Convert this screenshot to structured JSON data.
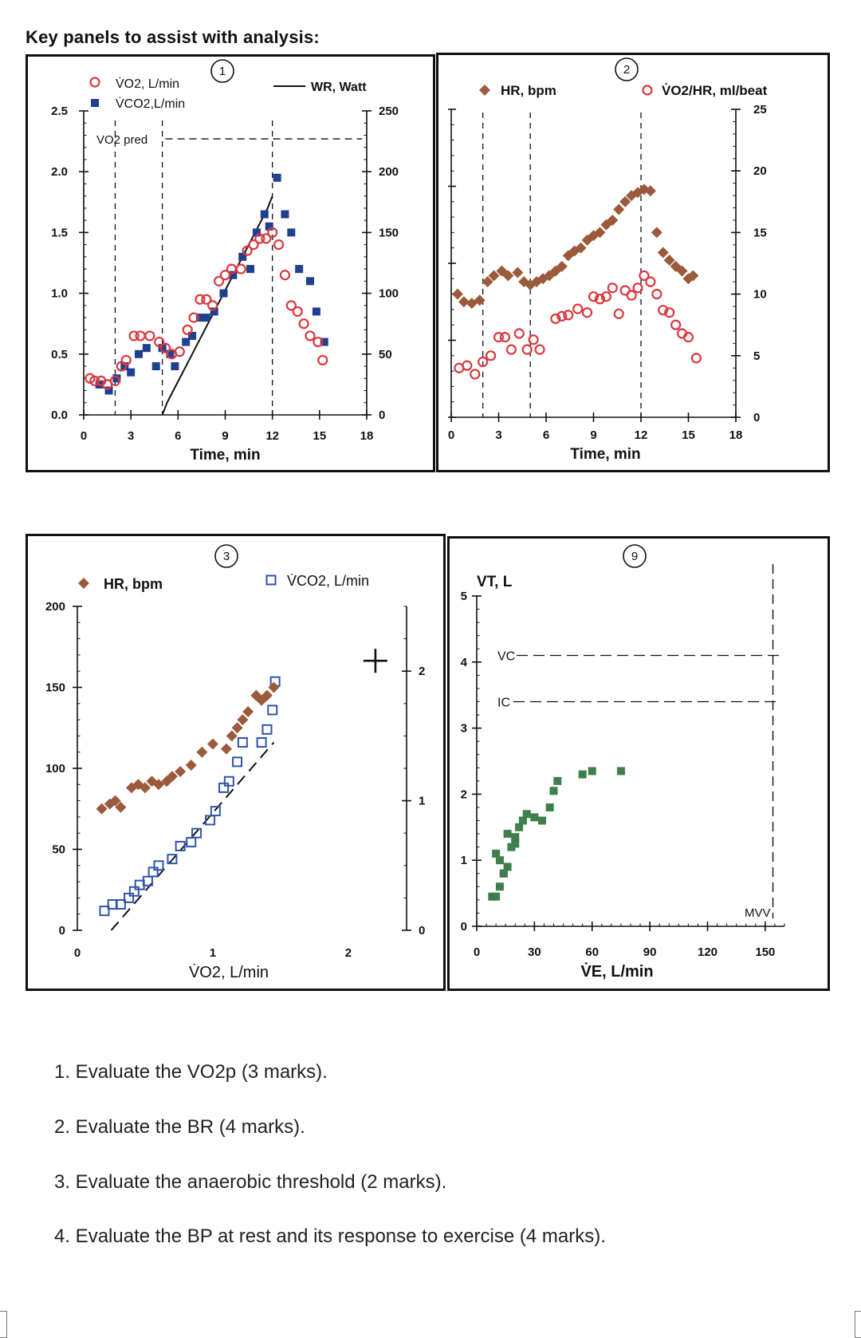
{
  "heading": "Key panels to assist with analysis:",
  "colors": {
    "vo2_red": "#d9393f",
    "vco2_blue": "#1f3f8f",
    "hr_brown": "#9c5a3c",
    "vco2_open_blue": "#2f55a8",
    "vt_green": "#3e7f4c",
    "ink": "#111111"
  },
  "chart_data": [
    {
      "panel_number": "1",
      "type": "scatter",
      "x_label": "Time, min",
      "x_ticks": [
        "0",
        "3",
        "6",
        "9",
        "12",
        "15",
        "18"
      ],
      "x_range": [
        0,
        18
      ],
      "y_left_range": [
        0,
        2.5
      ],
      "y_left_ticks": [
        "0.0",
        "0.5",
        "1.0",
        "1.5",
        "2.0",
        "2.5"
      ],
      "y_right_range": [
        0,
        250
      ],
      "y_right_ticks": [
        "0",
        "50",
        "100",
        "150",
        "200",
        "250"
      ],
      "legend": {
        "vo2": "V̇O2, L/min",
        "vco2": "V̇CO2,L/min",
        "wr": "WR, Watt"
      },
      "annotation": "VO2 pred",
      "vo2_pred": 2.27,
      "reference_lines_x": [
        2,
        5,
        12
      ],
      "series": [
        {
          "name": "V̇O2, L/min",
          "axis": "left",
          "marker": "open-circle",
          "x": [
            0.4,
            0.7,
            1.1,
            1.5,
            2.0,
            2.4,
            2.7,
            3.2,
            3.6,
            4.2,
            4.8,
            5.2,
            5.6,
            6.1,
            6.6,
            7.0,
            7.4,
            7.8,
            8.2,
            8.6,
            9.0,
            9.4,
            10.0,
            10.4,
            10.8,
            11.2,
            11.6,
            12.0,
            12.4,
            12.8,
            13.2,
            13.6,
            14.0,
            14.4,
            14.9,
            15.2
          ],
          "y": [
            0.3,
            0.28,
            0.28,
            0.25,
            0.28,
            0.4,
            0.45,
            0.65,
            0.65,
            0.65,
            0.6,
            0.55,
            0.5,
            0.52,
            0.7,
            0.8,
            0.95,
            0.95,
            0.9,
            1.1,
            1.15,
            1.2,
            1.2,
            1.35,
            1.4,
            1.45,
            1.45,
            1.5,
            1.4,
            1.15,
            0.9,
            0.85,
            0.75,
            0.65,
            0.6,
            0.45
          ]
        },
        {
          "name": "V̇CO2,L/min",
          "axis": "left",
          "marker": "filled-square",
          "x": [
            1.0,
            1.6,
            2.1,
            2.6,
            3.0,
            3.5,
            4.0,
            4.6,
            5.0,
            5.5,
            5.8,
            6.5,
            6.9,
            7.4,
            7.8,
            8.3,
            8.9,
            9.5,
            10.1,
            10.6,
            11.0,
            11.5,
            11.8,
            12.3,
            12.8,
            13.2,
            13.7,
            14.4,
            14.8,
            15.3
          ],
          "y": [
            0.25,
            0.2,
            0.3,
            0.4,
            0.35,
            0.5,
            0.55,
            0.4,
            0.55,
            0.5,
            0.4,
            0.6,
            0.65,
            0.8,
            0.8,
            0.85,
            1.0,
            1.15,
            1.3,
            1.2,
            1.5,
            1.65,
            1.55,
            1.95,
            1.65,
            1.5,
            1.2,
            1.1,
            0.85,
            0.6
          ]
        },
        {
          "name": "WR, Watt",
          "axis": "right",
          "marker": "line",
          "x": [
            5.0,
            5.3,
            5.3,
            5.7,
            5.7,
            6.1,
            6.1,
            6.5,
            6.5,
            6.9,
            6.9,
            7.3,
            7.3,
            7.7,
            7.7,
            8.1,
            8.1,
            8.5,
            8.5,
            8.9,
            8.9,
            9.3,
            9.3,
            9.7,
            9.7,
            10.1,
            10.1,
            10.5,
            10.5,
            10.9,
            10.9,
            11.3,
            11.3,
            11.7,
            11.7,
            12.0
          ],
          "y": [
            0,
            10,
            10,
            20,
            20,
            30,
            30,
            40,
            40,
            50,
            50,
            60,
            60,
            70,
            70,
            80,
            80,
            90,
            90,
            100,
            100,
            110,
            110,
            120,
            120,
            130,
            130,
            140,
            140,
            150,
            150,
            160,
            160,
            170,
            170,
            180
          ]
        }
      ]
    },
    {
      "panel_number": "2",
      "type": "scatter",
      "x_label": "Time, min",
      "x_ticks": [
        "0",
        "3",
        "6",
        "9",
        "12",
        "15",
        "18"
      ],
      "x_range": [
        0,
        18
      ],
      "y_left_range": [
        0,
        200
      ],
      "y_left_ticks": [
        "0",
        "50",
        "100",
        "150",
        "200"
      ],
      "y_right_range": [
        0,
        25
      ],
      "y_right_ticks": [
        "0",
        "5",
        "10",
        "15",
        "20",
        "25"
      ],
      "legend": {
        "hr": "HR, bpm",
        "o2pulse": "V̇O2/HR, ml/beat"
      },
      "reference_lines_x": [
        2,
        5,
        12
      ],
      "series": [
        {
          "name": "HR, bpm",
          "axis": "left",
          "marker": "filled-diamond",
          "x": [
            0.4,
            0.8,
            1.3,
            1.8,
            2.3,
            2.7,
            3.2,
            3.6,
            4.2,
            4.6,
            5.0,
            5.4,
            5.8,
            6.2,
            6.6,
            7.0,
            7.4,
            7.8,
            8.2,
            8.6,
            9.0,
            9.4,
            9.8,
            10.2,
            10.6,
            11.0,
            11.4,
            11.8,
            12.2,
            12.6,
            13.0,
            13.4,
            13.8,
            14.2,
            14.6,
            15.0,
            15.3
          ],
          "y": [
            80,
            75,
            74,
            76,
            88,
            92,
            95,
            92,
            94,
            88,
            86,
            88,
            90,
            92,
            95,
            98,
            105,
            108,
            110,
            115,
            118,
            120,
            125,
            128,
            135,
            140,
            144,
            146,
            148,
            147,
            120,
            107,
            102,
            98,
            95,
            90,
            92
          ]
        },
        {
          "name": "V̇O2/HR, ml/beat",
          "axis": "right",
          "marker": "open-circle",
          "x": [
            0.5,
            1.0,
            1.5,
            2.0,
            2.5,
            3.0,
            3.4,
            3.8,
            4.3,
            4.8,
            5.2,
            5.6,
            6.6,
            7.0,
            7.4,
            8.0,
            8.6,
            9.0,
            9.4,
            9.8,
            10.2,
            10.6,
            11.0,
            11.4,
            11.8,
            12.2,
            12.6,
            13.0,
            13.4,
            13.8,
            14.2,
            14.6,
            15.0,
            15.5
          ],
          "y": [
            4.0,
            4.2,
            3.5,
            4.5,
            5.0,
            6.5,
            6.5,
            5.5,
            6.8,
            5.5,
            6.3,
            5.5,
            8.0,
            8.2,
            8.3,
            8.8,
            8.5,
            9.8,
            9.6,
            9.8,
            10.5,
            8.4,
            10.3,
            9.9,
            10.5,
            11.5,
            11.0,
            10.0,
            8.7,
            8.5,
            7.5,
            6.8,
            6.5,
            4.8
          ]
        }
      ]
    },
    {
      "panel_number": "3",
      "type": "scatter",
      "x_label": "V̇O2, L/min",
      "x_ticks": [
        "0",
        "1",
        "2"
      ],
      "x_range": [
        0,
        2.5
      ],
      "y_left_range": [
        0,
        200
      ],
      "y_left_ticks": [
        "0",
        "50",
        "100",
        "150",
        "200"
      ],
      "y_right_range": [
        0,
        2.5
      ],
      "y_right_ticks": [
        "0",
        "1",
        "2"
      ],
      "legend": {
        "hr": "HR, bpm",
        "vco2": "V̇CO2, L/min"
      },
      "plus_marker": {
        "x": 2.2,
        "y": 2.08
      },
      "reference_line": {
        "x": [
          0.25,
          1.45
        ],
        "y_right": [
          0.0,
          1.45
        ]
      },
      "series": [
        {
          "name": "HR, bpm",
          "axis": "left",
          "marker": "filled-diamond",
          "x": [
            0.18,
            0.24,
            0.28,
            0.32,
            0.4,
            0.45,
            0.5,
            0.55,
            0.6,
            0.66,
            0.7,
            0.76,
            0.84,
            0.92,
            1.0,
            1.1,
            1.14,
            1.18,
            1.22,
            1.26,
            1.32,
            1.36,
            1.4,
            1.45
          ],
          "y": [
            75,
            78,
            80,
            76,
            88,
            90,
            88,
            92,
            90,
            92,
            95,
            98,
            102,
            110,
            115,
            112,
            120,
            125,
            130,
            135,
            145,
            142,
            145,
            150
          ]
        },
        {
          "name": "V̇CO2, L/min",
          "axis": "right",
          "marker": "open-square",
          "x": [
            0.2,
            0.26,
            0.32,
            0.38,
            0.42,
            0.46,
            0.52,
            0.56,
            0.6,
            0.7,
            0.76,
            0.84,
            0.88,
            0.98,
            1.02,
            1.08,
            1.12,
            1.18,
            1.22,
            1.36,
            1.4,
            1.44,
            1.46
          ],
          "y": [
            0.15,
            0.2,
            0.2,
            0.25,
            0.3,
            0.35,
            0.38,
            0.45,
            0.5,
            0.55,
            0.65,
            0.68,
            0.75,
            0.85,
            0.92,
            1.1,
            1.15,
            1.3,
            1.45,
            1.45,
            1.55,
            1.7,
            1.92
          ]
        }
      ]
    },
    {
      "panel_number": "9",
      "type": "scatter",
      "x_label": "V̇E, L/min",
      "x_ticks": [
        "0",
        "30",
        "60",
        "90",
        "120",
        "150"
      ],
      "x_range": [
        0,
        160
      ],
      "y_left_range": [
        0,
        5
      ],
      "y_left_ticks": [
        "0",
        "1",
        "2",
        "3",
        "4",
        "5"
      ],
      "y_label": "VT, L",
      "vc_label": "VC",
      "vc_value": 4.1,
      "ic_label": "IC",
      "ic_value": 3.4,
      "mvv_label": "MVV",
      "mvv_value": 154,
      "series": [
        {
          "name": "VT, L",
          "axis": "left",
          "marker": "filled-square",
          "x": [
            8,
            10,
            12,
            14,
            16,
            18,
            20,
            22,
            24,
            26,
            30,
            34,
            38,
            40,
            42,
            55,
            60,
            75,
            12,
            14,
            10,
            16,
            20
          ],
          "y": [
            0.45,
            0.45,
            0.6,
            0.8,
            0.9,
            1.2,
            1.35,
            1.5,
            1.6,
            1.7,
            1.65,
            1.6,
            1.8,
            2.05,
            2.2,
            2.3,
            2.35,
            2.35,
            1.0,
            0.8,
            1.1,
            1.4,
            1.25
          ]
        }
      ]
    }
  ],
  "questions": [
    "1. Evaluate the VO2p (3 marks).",
    "2. Evaluate the BR (4 marks).",
    "3. Evaluate the anaerobic threshold (2 marks).",
    "4. Evaluate the BP at rest and its response to exercise (4 marks)."
  ]
}
